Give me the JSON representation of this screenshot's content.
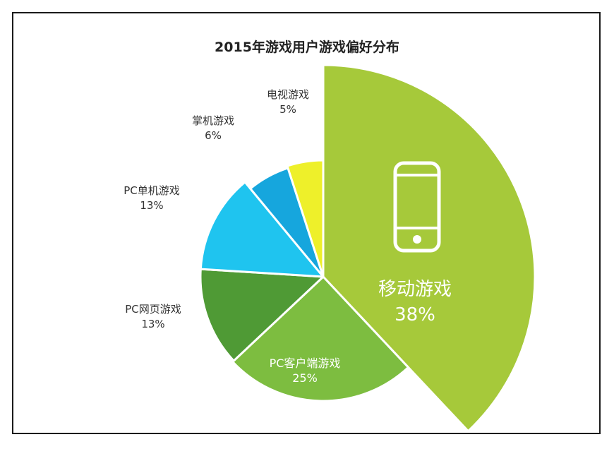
{
  "chart_data": {
    "type": "pie",
    "title": "2015年游戏用户游戏偏好分布",
    "slices": [
      {
        "name": "移动游戏",
        "value": 38,
        "label": "38%",
        "color": "#a6c93a"
      },
      {
        "name": "PC客户端游戏",
        "value": 25,
        "label": "25%",
        "color": "#7dbd40"
      },
      {
        "name": "PC网页游戏",
        "value": 13,
        "label": "13%",
        "color": "#4f9a35"
      },
      {
        "name": "PC单机游戏",
        "value": 13,
        "label": "13%",
        "color": "#1fc4ef"
      },
      {
        "name": "掌机游戏",
        "value": 6,
        "label": "6%",
        "color": "#16a6dd"
      },
      {
        "name": "电视游戏",
        "value": 5,
        "label": "5%",
        "color": "#eef02a"
      }
    ],
    "icons": [
      "smartphone-icon"
    ]
  }
}
